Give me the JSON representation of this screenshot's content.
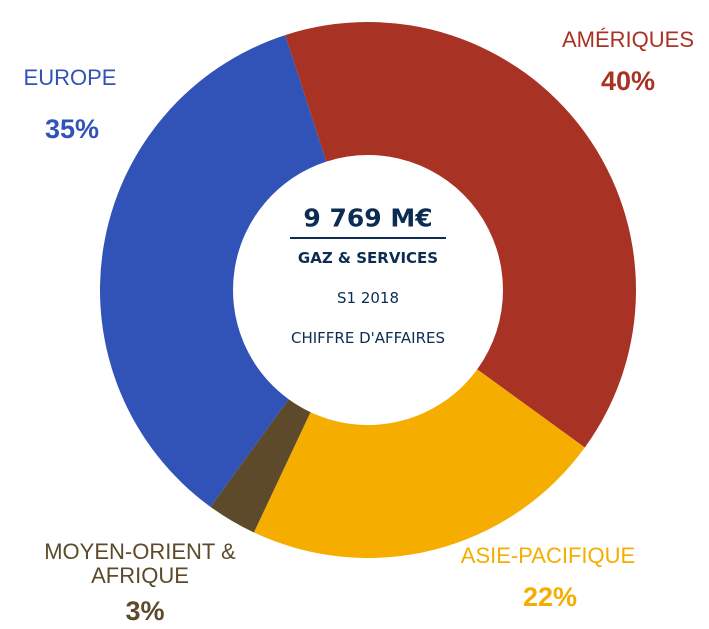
{
  "chart_data": {
    "type": "donut",
    "categories": [
      "AMÉRIQUES",
      "ASIE-PACIFIQUE",
      "MOYEN-ORIENT & AFRIQUE",
      "EUROPE"
    ],
    "values": [
      40,
      22,
      3,
      35
    ],
    "value_labels": [
      "40%",
      "22%",
      "3%",
      "35%"
    ],
    "colors": [
      "#a83224",
      "#f5ad00",
      "#5c4a2a",
      "#3153b8"
    ],
    "center_text": [
      "9 769 M€",
      "GAZ & SERVICES",
      "S1 2018",
      "CHIFFRE D'AFFAIRES"
    ]
  }
}
